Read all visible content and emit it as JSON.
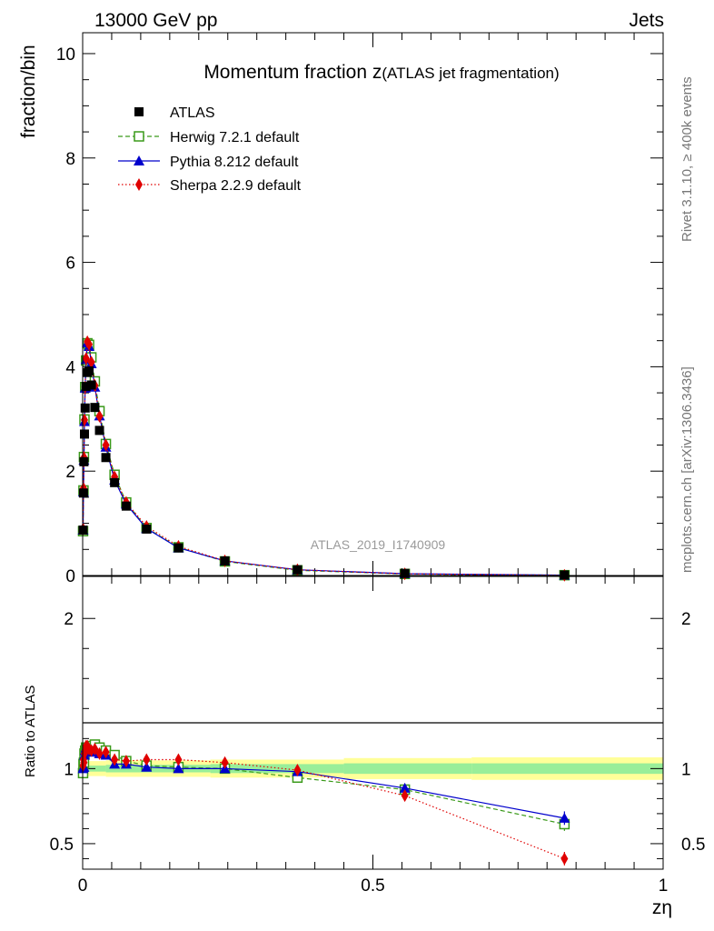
{
  "header": {
    "left": "13000 GeV pp",
    "right": "Jets"
  },
  "side": {
    "rivet": "Rivet 3.1.10, ≥ 400k events",
    "mcplots": "mcplots.cern.ch [arXiv:1306.3436]"
  },
  "watermark": "ATLAS_2019_I1740909",
  "chart_data": [
    {
      "type": "scatter",
      "panel": "main",
      "title_main": "Momentum fraction z",
      "title_sub": "(ATLAS jet fragmentation)",
      "xlabel": "zη",
      "ylabel": "fraction/bin",
      "xlim": [
        0,
        1
      ],
      "ylim": [
        0,
        10.4
      ],
      "yticks": [
        0,
        2,
        4,
        6,
        8,
        10
      ],
      "ytick_labels": [
        "0",
        "2",
        "4",
        "6",
        "8",
        "10"
      ],
      "x": [
        0.0007,
        0.0014,
        0.0022,
        0.0031,
        0.0043,
        0.0059,
        0.0081,
        0.011,
        0.015,
        0.021,
        0.029,
        0.04,
        0.055,
        0.075,
        0.11,
        0.165,
        0.245,
        0.37,
        0.555,
        0.83
      ],
      "series": [
        {
          "name": "ATLAS",
          "color": "#000000",
          "marker": "square",
          "values": [
            0.87,
            1.58,
            2.18,
            2.71,
            3.21,
            3.62,
            3.89,
            3.92,
            3.65,
            3.22,
            2.78,
            2.26,
            1.78,
            1.33,
            0.89,
            0.53,
            0.28,
            0.11,
            0.04,
            0.01
          ]
        },
        {
          "name": "Herwig 7.2.1 default",
          "color": "#3a9a1a",
          "marker": "open-square",
          "line": "dashed",
          "values": [
            0.85,
            1.63,
            2.27,
            2.99,
            3.61,
            4.12,
            4.45,
            4.42,
            4.18,
            3.72,
            3.15,
            2.52,
            1.93,
            1.4,
            0.91,
            0.54,
            0.27,
            0.1,
            0.03,
            0.006
          ]
        },
        {
          "name": "Pythia 8.212 default",
          "color": "#0000cc",
          "marker": "triangle",
          "line": "solid",
          "values": [
            0.87,
            1.6,
            2.21,
            2.95,
            3.59,
            4.14,
            4.46,
            4.39,
            4.06,
            3.61,
            3.06,
            2.46,
            1.83,
            1.37,
            0.9,
            0.53,
            0.28,
            0.11,
            0.035,
            0.007
          ]
        },
        {
          "name": "Sherpa 2.2.9 default",
          "color": "#e00000",
          "marker": "diamond",
          "line": "dotted",
          "values": [
            0.89,
            1.67,
            2.26,
            2.98,
            3.61,
            4.16,
            4.48,
            4.43,
            4.09,
            3.64,
            3.05,
            2.5,
            1.89,
            1.4,
            0.94,
            0.56,
            0.28,
            0.11,
            0.033,
            0.004
          ]
        }
      ]
    },
    {
      "type": "scatter",
      "panel": "ratio",
      "ylabel": "Ratio to ATLAS",
      "xlim": [
        0,
        1
      ],
      "ylim": [
        0.33,
        2.28
      ],
      "yticks": [
        0.5,
        1,
        2
      ],
      "ytick_labels": [
        "0.5",
        "1",
        "2"
      ],
      "xticks": [
        0,
        0.5,
        1
      ],
      "xtick_labels": [
        "0",
        "0.5",
        "1"
      ],
      "x": [
        0.0007,
        0.0014,
        0.0022,
        0.0031,
        0.0043,
        0.0059,
        0.0081,
        0.011,
        0.015,
        0.021,
        0.029,
        0.04,
        0.055,
        0.075,
        0.11,
        0.165,
        0.245,
        0.37,
        0.555,
        0.83
      ],
      "band_edges": [
        0,
        0.04,
        0.22,
        0.45,
        0.67,
        1
      ],
      "band_inner": [
        0.02,
        0.025,
        0.03,
        0.035,
        0.035
      ],
      "band_outer": [
        0.05,
        0.055,
        0.06,
        0.07,
        0.075
      ],
      "series": [
        {
          "name": "Herwig 7.2.1 default",
          "color": "#3a9a1a",
          "marker": "open-square",
          "line": "dashed",
          "values": [
            0.97,
            1.03,
            1.04,
            1.1,
            1.12,
            1.14,
            1.14,
            1.13,
            1.15,
            1.16,
            1.14,
            1.12,
            1.09,
            1.05,
            1.02,
            1.01,
            1.0,
            0.94,
            0.86,
            0.63
          ]
        },
        {
          "name": "Pythia 8.212 default",
          "color": "#0000cc",
          "marker": "triangle",
          "line": "solid",
          "values": [
            1.0,
            1.01,
            1.01,
            1.09,
            1.12,
            1.14,
            1.15,
            1.12,
            1.11,
            1.12,
            1.1,
            1.09,
            1.03,
            1.03,
            1.01,
            1.0,
            1.0,
            0.98,
            0.87,
            0.67
          ]
        },
        {
          "name": "Sherpa 2.2.9 default",
          "color": "#e00000",
          "marker": "diamond",
          "line": "dotted",
          "values": [
            1.02,
            1.06,
            1.04,
            1.1,
            1.12,
            1.15,
            1.15,
            1.13,
            1.12,
            1.13,
            1.1,
            1.11,
            1.06,
            1.05,
            1.06,
            1.06,
            1.04,
            0.99,
            0.82,
            0.4
          ]
        }
      ]
    }
  ]
}
